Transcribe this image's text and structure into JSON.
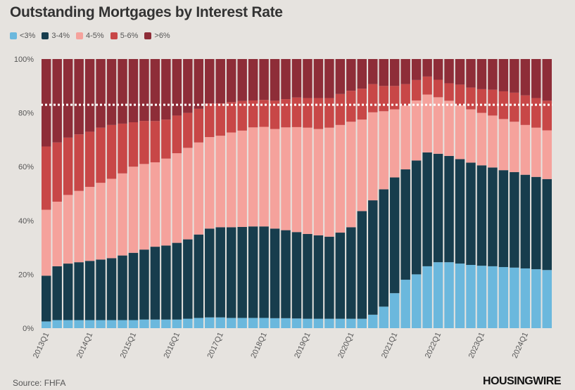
{
  "title": "Outstanding Mortgages by Interest Rate",
  "source": "Source: FHFA",
  "logo": "HOUSINGWIRE",
  "chart_data": {
    "type": "bar",
    "stacked": true,
    "title": "Outstanding Mortgages by Interest Rate",
    "ylim": [
      0,
      100
    ],
    "yticks": [
      "0%",
      "20%",
      "40%",
      "60%",
      "80%",
      "100%"
    ],
    "ytick_values": [
      0,
      20,
      40,
      60,
      80,
      100
    ],
    "reference_line": 83,
    "xtick_labels": [
      "2013Q1",
      "2014Q1",
      "2015Q1",
      "2016Q1",
      "2017Q1",
      "2018Q1",
      "2019Q1",
      "2020Q1",
      "2021Q1",
      "2022Q1",
      "2023Q1",
      "2024Q1"
    ],
    "categories": [
      "2013Q1",
      "2013Q2",
      "2013Q3",
      "2013Q4",
      "2014Q1",
      "2014Q2",
      "2014Q3",
      "2014Q4",
      "2015Q1",
      "2015Q2",
      "2015Q3",
      "2015Q4",
      "2016Q1",
      "2016Q2",
      "2016Q3",
      "2016Q4",
      "2017Q1",
      "2017Q2",
      "2017Q3",
      "2017Q4",
      "2018Q1",
      "2018Q2",
      "2018Q3",
      "2018Q4",
      "2019Q1",
      "2019Q2",
      "2019Q3",
      "2019Q4",
      "2020Q1",
      "2020Q2",
      "2020Q3",
      "2020Q4",
      "2021Q1",
      "2021Q2",
      "2021Q3",
      "2021Q4",
      "2022Q1",
      "2022Q2",
      "2022Q3",
      "2022Q4",
      "2023Q1",
      "2023Q2",
      "2023Q3",
      "2023Q4",
      "2024Q1",
      "2024Q2",
      "2024Q3"
    ],
    "series": [
      {
        "name": "<3%",
        "color": "#6bb8dd",
        "values": [
          2.5,
          3,
          3,
          3,
          3,
          3,
          3,
          3,
          3,
          3.2,
          3.2,
          3.2,
          3.2,
          3.5,
          3.8,
          4,
          4,
          3.8,
          3.8,
          3.8,
          3.8,
          3.7,
          3.7,
          3.6,
          3.5,
          3.5,
          3.5,
          3.5,
          3.5,
          3.5,
          5,
          8,
          13,
          18,
          20,
          23,
          24.5,
          24.5,
          24,
          23.5,
          23.2,
          23,
          22.7,
          22.5,
          22.2,
          21.9,
          21.6
        ]
      },
      {
        "name": "3-4%",
        "color": "#173d4d",
        "values": [
          17,
          20,
          21,
          21.5,
          22,
          22.5,
          23,
          24,
          25,
          26,
          27,
          27.5,
          28.5,
          29.5,
          31,
          33,
          33.5,
          33.7,
          33.8,
          34,
          34,
          33.3,
          32.7,
          32.1,
          31.5,
          31,
          30.5,
          32,
          34,
          40,
          42.5,
          43.6,
          43,
          41,
          42.3,
          42.3,
          40.3,
          39.5,
          38.8,
          38,
          37.3,
          36.7,
          36,
          35.5,
          34.8,
          34.3,
          33.8
        ]
      },
      {
        "name": "4-5%",
        "color": "#f5a29c",
        "values": [
          24.5,
          24,
          25.5,
          26.5,
          27.5,
          28.5,
          29.5,
          30.5,
          32,
          31.8,
          31.3,
          32.3,
          33.3,
          34,
          34.2,
          34,
          34,
          35.2,
          35.8,
          36.8,
          37,
          37,
          38.2,
          39,
          39.5,
          39.5,
          40.5,
          40,
          39.2,
          34,
          32.7,
          29,
          25.3,
          23.7,
          22.3,
          21.5,
          21,
          20.5,
          20,
          19.8,
          19.5,
          19.3,
          19,
          18.7,
          18.5,
          18.3,
          18.1
        ]
      },
      {
        "name": "5-6%",
        "color": "#c84747",
        "values": [
          23.5,
          22,
          21.3,
          21,
          20.5,
          20.5,
          20,
          18.5,
          16.5,
          16,
          15.3,
          14.5,
          14,
          13,
          12.5,
          12.5,
          12,
          11.3,
          11,
          10,
          10,
          10.5,
          10.5,
          11,
          11,
          11.5,
          11,
          11.5,
          11.5,
          11.5,
          10.5,
          9.4,
          8.7,
          8,
          7.6,
          6.7,
          6.5,
          6.5,
          7.7,
          8.1,
          8.8,
          9.6,
          10.3,
          10.8,
          11,
          11,
          11
        ]
      },
      {
        "name": ">6%",
        "color": "#8e2d38",
        "values": [
          32.5,
          31,
          29.2,
          28,
          27,
          25.5,
          24.5,
          24,
          23.5,
          23,
          23,
          22.5,
          21,
          20,
          18.5,
          16.5,
          16.5,
          16,
          15.6,
          15.4,
          15.2,
          15.5,
          14.9,
          14.3,
          14.5,
          14.5,
          14.5,
          13,
          11.8,
          11,
          9.3,
          10,
          10,
          9.3,
          7.8,
          6.5,
          7.7,
          9,
          9.5,
          10.6,
          11.2,
          11.4,
          12,
          12.5,
          13.5,
          14.5,
          15.5
        ]
      }
    ]
  }
}
